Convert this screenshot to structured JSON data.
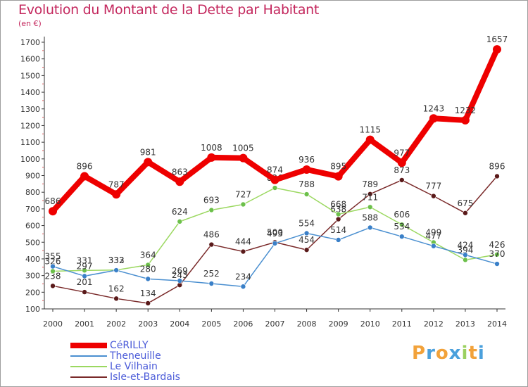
{
  "colors": {
    "title": "#c4285e",
    "legend_text": "#4a5ad8"
  },
  "logo": {
    "text": "Proxiti",
    "letters": [
      {
        "ch": "P",
        "color": "#f2a23a"
      },
      {
        "ch": "r",
        "color": "#4aa0dc"
      },
      {
        "ch": "o",
        "color": "#f2a23a"
      },
      {
        "ch": "x",
        "color": "#4aa0dc"
      },
      {
        "ch": "i",
        "color": "#9bd060"
      },
      {
        "ch": "t",
        "color": "#f2a23a"
      },
      {
        "ch": "i",
        "color": "#4aa0dc"
      }
    ]
  },
  "chart_data": {
    "type": "line",
    "title": "Evolution du Montant de la Dette par Habitant",
    "subtitle": "(en €)",
    "xlabel": "",
    "ylabel": "",
    "x": [
      "2000",
      "2001",
      "2002",
      "2003",
      "2004",
      "2005",
      "2006",
      "2007",
      "2008",
      "2009",
      "2010",
      "2011",
      "2012",
      "2013",
      "2014"
    ],
    "ylim": [
      100,
      1700
    ],
    "yticks": [
      "100",
      "200",
      "300",
      "400",
      "500",
      "600",
      "700",
      "800",
      "900",
      "1000",
      "1100",
      "1200",
      "1300",
      "1400",
      "1500",
      "1600",
      "1700"
    ],
    "grid": false,
    "legend": "bottom-left",
    "series": [
      {
        "name": "Isle-et-Bardais",
        "color": "#7a2a2a",
        "dot_color": "#5a1a1a",
        "width": 1.5,
        "values": [
          238,
          201,
          162,
          134,
          243,
          486,
          444,
          500,
          454,
          638,
          789,
          873,
          777,
          675,
          896
        ],
        "labels": [
          "238",
          "201",
          "162",
          "134",
          "243",
          "486",
          "444",
          "500",
          "454",
          "638",
          "789",
          "873",
          "777",
          "675",
          "896"
        ]
      },
      {
        "name": "Le Vilhain",
        "color": "#9bd860",
        "dot_color": "#6cc04a",
        "width": 1.5,
        "values": [
          326,
          331,
          333,
          364,
          624,
          693,
          727,
          826,
          788,
          668,
          711,
          606,
          499,
          394,
          426
        ],
        "labels": [
          "326",
          "331",
          "333",
          "364",
          "624",
          "693",
          "727",
          "826",
          "788",
          "668",
          "711",
          "606",
          "499",
          "394",
          "426"
        ]
      },
      {
        "name": "Theneuille",
        "color": "#4a8fd0",
        "dot_color": "#3a80c8",
        "width": 1.5,
        "values": [
          355,
          297,
          332,
          280,
          269,
          252,
          234,
          493,
          554,
          514,
          588,
          534,
          477,
          424,
          370
        ],
        "labels": [
          "355",
          "297",
          "332",
          "280",
          "269",
          "252",
          "234",
          "493",
          "554",
          "514",
          "588",
          "534",
          "477",
          "424",
          "370"
        ]
      },
      {
        "name": "CéRILLY",
        "color": "#ee0000",
        "dot_color": "#ee0000",
        "width": 8,
        "values": [
          686,
          896,
          787,
          981,
          863,
          1008,
          1005,
          874,
          936,
          895,
          1115,
          977,
          1243,
          1232,
          1657
        ],
        "labels": [
          "686",
          "896",
          "787",
          "981",
          "863",
          "1008",
          "1005",
          "874",
          "936",
          "895",
          "1115",
          "977",
          "1243",
          "1232",
          "1657"
        ]
      }
    ],
    "legend_order": [
      "CéRILLY",
      "Theneuille",
      "Le Vilhain",
      "Isle-et-Bardais"
    ]
  }
}
